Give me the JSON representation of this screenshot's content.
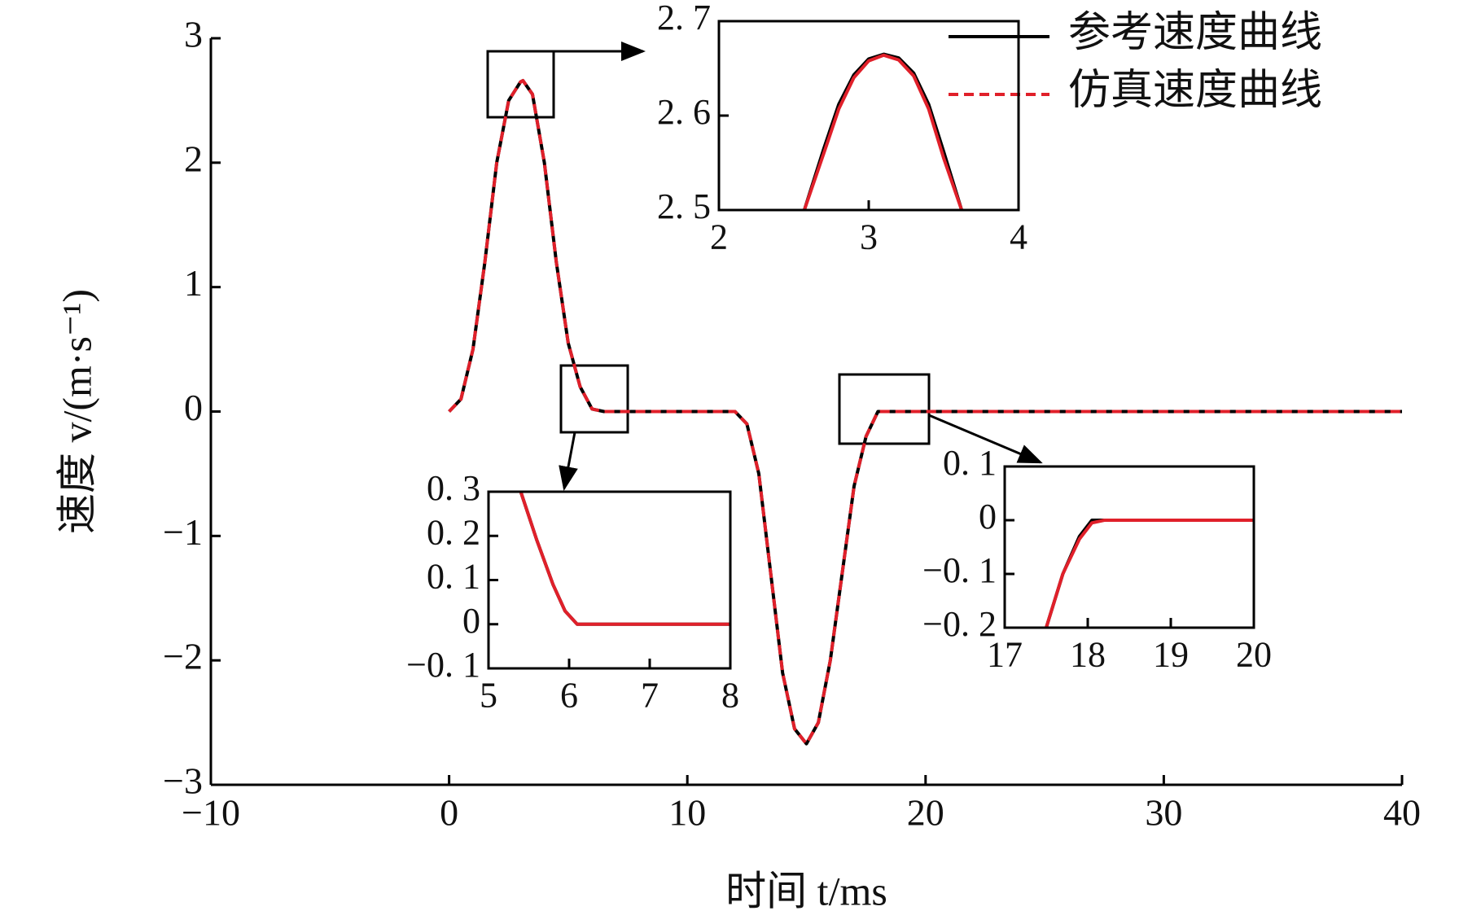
{
  "chart_data": [
    {
      "type": "line",
      "x_label": "时间 t/ms",
      "y_label": "速度 v/(m·s⁻¹)",
      "xlim": [
        -10,
        40
      ],
      "ylim": [
        -3,
        3
      ],
      "xticks": [
        {
          "value": -10,
          "label": "−10"
        },
        0,
        10,
        20,
        30,
        40
      ],
      "yticks": [
        {
          "value": -3,
          "label": "−3"
        },
        {
          "value": -2,
          "label": "−2"
        },
        {
          "value": -1,
          "label": "−1"
        },
        0,
        1,
        2,
        3
      ],
      "x": [
        0,
        0.5,
        1,
        1.5,
        2,
        2.5,
        3,
        3.1,
        3.5,
        4,
        4.5,
        5,
        5.5,
        6,
        6.5,
        12,
        12.5,
        13,
        13.5,
        14,
        14.5,
        15,
        15.5,
        16,
        16.5,
        17,
        17.5,
        18,
        18.5,
        40
      ],
      "series": [
        {
          "name": "参考速度曲线",
          "color": "#000000",
          "dashed": false,
          "values": [
            0,
            0.1,
            0.5,
            1.2,
            2.0,
            2.5,
            2.65,
            2.66,
            2.55,
            2.0,
            1.2,
            0.55,
            0.2,
            0.02,
            0,
            0,
            -0.1,
            -0.5,
            -1.3,
            -2.1,
            -2.55,
            -2.67,
            -2.5,
            -2.0,
            -1.3,
            -0.6,
            -0.2,
            0,
            0,
            0
          ]
        },
        {
          "name": "仿真速度曲线",
          "color": "#e0202a",
          "dashed": true,
          "values": [
            0,
            0.1,
            0.5,
            1.2,
            2.0,
            2.5,
            2.65,
            2.66,
            2.55,
            2.0,
            1.2,
            0.55,
            0.2,
            0.02,
            0,
            0,
            -0.1,
            -0.5,
            -1.3,
            -2.1,
            -2.55,
            -2.67,
            -2.5,
            -2.0,
            -1.3,
            -0.6,
            -0.2,
            0,
            0,
            0
          ]
        }
      ],
      "legend": "upper right"
    },
    {
      "type": "line",
      "xlim": [
        2,
        4
      ],
      "ylim": [
        2.5,
        2.7
      ],
      "xticks": [
        2,
        3,
        4
      ],
      "yticks": [
        {
          "value": 2.5,
          "label": "2. 5"
        },
        {
          "value": 2.6,
          "label": "2. 6"
        },
        {
          "value": 2.7,
          "label": "2. 7"
        }
      ],
      "x": [
        2.57,
        2.7,
        2.8,
        2.9,
        3.0,
        3.1,
        3.2,
        3.3,
        3.4,
        3.5,
        3.62
      ],
      "series": [
        {
          "color": "#000000",
          "values": [
            2.5,
            2.565,
            2.612,
            2.643,
            2.66,
            2.665,
            2.661,
            2.645,
            2.612,
            2.562,
            2.5
          ]
        },
        {
          "color": "#e0202a",
          "values": [
            2.5,
            2.56,
            2.607,
            2.64,
            2.658,
            2.664,
            2.659,
            2.642,
            2.607,
            2.555,
            2.5
          ]
        }
      ]
    },
    {
      "type": "line",
      "xlim": [
        5,
        8
      ],
      "ylim": [
        -0.1,
        0.3
      ],
      "xticks": [
        5,
        6,
        7,
        8
      ],
      "yticks": [
        {
          "value": -0.1,
          "label": "−0. 1"
        },
        0,
        {
          "value": 0.1,
          "label": "0. 1"
        },
        {
          "value": 0.2,
          "label": "0. 2"
        },
        {
          "value": 0.3,
          "label": "0. 3"
        }
      ],
      "x": [
        5.4,
        5.6,
        5.8,
        5.95,
        6.1,
        8
      ],
      "series": [
        {
          "color": "#000000",
          "values": [
            0.3,
            0.19,
            0.09,
            0.03,
            0,
            0
          ]
        },
        {
          "color": "#e0202a",
          "values": [
            0.3,
            0.19,
            0.09,
            0.03,
            0,
            0
          ]
        }
      ]
    },
    {
      "type": "line",
      "xlim": [
        17,
        20
      ],
      "ylim": [
        -0.2,
        0.1
      ],
      "xticks": [
        17,
        18,
        19,
        20
      ],
      "yticks": [
        {
          "value": -0.2,
          "label": "−0. 2"
        },
        {
          "value": -0.1,
          "label": "−0. 1"
        },
        0,
        {
          "value": 0.1,
          "label": "0. 1"
        }
      ],
      "x": [
        17.5,
        17.7,
        17.9,
        18.05,
        18.2,
        20
      ],
      "series": [
        {
          "color": "#000000",
          "values": [
            -0.2,
            -0.1,
            -0.03,
            0,
            0,
            0
          ]
        },
        {
          "color": "#e0202a",
          "values": [
            -0.2,
            -0.1,
            -0.035,
            -0.005,
            0,
            0
          ]
        }
      ]
    }
  ]
}
